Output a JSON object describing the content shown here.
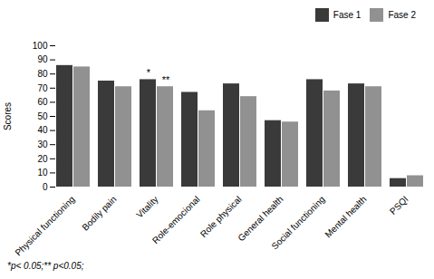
{
  "chart_data": {
    "type": "bar",
    "categories": [
      "Physical functioning",
      "Bodily pain",
      "Vitality",
      "Role-emocional",
      "Role physical",
      "General health",
      "Social functioning",
      "Mental health",
      "PSQI"
    ],
    "series": [
      {
        "name": "Fase 1",
        "color": "#3a3a3a",
        "values": [
          86,
          75,
          76,
          67,
          73,
          47,
          76,
          73,
          6
        ]
      },
      {
        "name": "Fase 2",
        "color": "#919191",
        "values": [
          85,
          71,
          71,
          54,
          64,
          46,
          68,
          71,
          8
        ]
      }
    ],
    "y_label": "Scores",
    "ylim": [
      0,
      100
    ],
    "yticks": [
      0,
      10,
      20,
      30,
      40,
      50,
      60,
      70,
      80,
      90,
      100
    ],
    "grid": false,
    "legend": "upper right",
    "annotations": [
      {
        "text": "*",
        "category": "Vitality",
        "series": "Fase 1"
      },
      {
        "text": "**",
        "category": "Vitality",
        "series": "Fase 2"
      }
    ],
    "caption": "*p< 0.05;** p<0.05;"
  }
}
